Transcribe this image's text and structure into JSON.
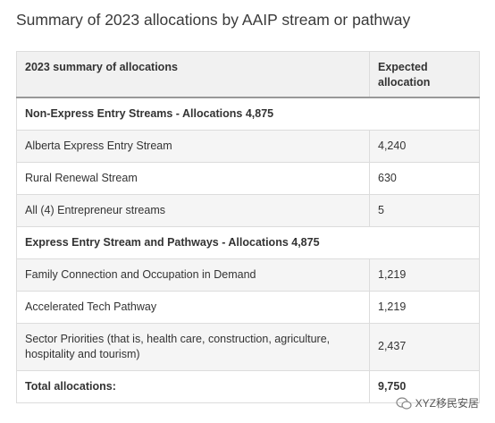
{
  "title": "Summary of 2023 allocations by AAIP stream or pathway",
  "table": {
    "header": [
      "2023 summary of allocations",
      "Expected allocation"
    ],
    "rows": [
      [
        "Non-Express Entry Streams - Allocations 4,875"
      ],
      [
        "Alberta Express Entry Stream",
        "4,240"
      ],
      [
        "Rural Renewal Stream",
        "630"
      ],
      [
        "All (4) Entrepreneur streams",
        "5"
      ],
      [
        "Express Entry Stream and Pathways - Allocations 4,875"
      ],
      [
        "Family Connection and Occupation in Demand",
        "1,219"
      ],
      [
        "Accelerated Tech Pathway",
        "1,219"
      ],
      [
        "Sector Priorities (that is, health care, construction, agriculture, hospitality and tourism)",
        "2,437"
      ],
      [
        "Total allocations:",
        "9,750"
      ]
    ]
  },
  "watermark": "XYZ移民安居"
}
